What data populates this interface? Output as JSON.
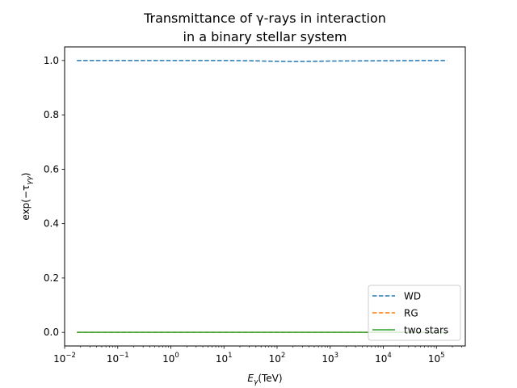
{
  "chart_data": {
    "type": "line",
    "title_line1": "Transmittance of γ-rays in interaction",
    "title_line2": "in a binary stellar system",
    "xlabel_main": "E",
    "xlabel_sub": "γ",
    "xlabel_unit": "(TeV)",
    "ylabel_main": "exp(−τ",
    "ylabel_sub": "γγ",
    "ylabel_close": ")",
    "x_scale": "log",
    "xlim": [
      0.01,
      350000
    ],
    "ylim": [
      -0.05,
      1.05
    ],
    "x_ticks": [
      {
        "value": 0.01,
        "base": "10",
        "exp": "−2"
      },
      {
        "value": 0.1,
        "base": "10",
        "exp": "−1"
      },
      {
        "value": 1,
        "base": "10",
        "exp": "0"
      },
      {
        "value": 10,
        "base": "10",
        "exp": "1"
      },
      {
        "value": 100,
        "base": "10",
        "exp": "2"
      },
      {
        "value": 1000,
        "base": "10",
        "exp": "3"
      },
      {
        "value": 10000,
        "base": "10",
        "exp": "4"
      },
      {
        "value": 100000,
        "base": "10",
        "exp": "5"
      }
    ],
    "y_ticks": [
      0.0,
      0.2,
      0.4,
      0.6,
      0.8,
      1.0
    ],
    "y_tick_labels": [
      "0.0",
      "0.2",
      "0.4",
      "0.6",
      "0.8",
      "1.0"
    ],
    "grid": false,
    "legend_placement": "lower-right",
    "series": [
      {
        "name": "WD",
        "color": "#1f77b4",
        "dash": "dashed",
        "x": [
          0.017,
          0.1,
          1,
          10,
          30,
          100,
          200,
          500,
          1000,
          10000,
          100000,
          160000
        ],
        "y": [
          1.0,
          1.0,
          1.0,
          1.0,
          0.999,
          0.997,
          0.996,
          0.997,
          0.998,
          0.999,
          1.0,
          1.0
        ]
      },
      {
        "name": "RG",
        "color": "#ff7f0e",
        "dash": "dashed",
        "x": [
          0.017,
          1,
          100,
          10000,
          160000
        ],
        "y": [
          0.0,
          0.0,
          0.0,
          0.0,
          0.0
        ]
      },
      {
        "name": "two stars",
        "color": "#2ca02c",
        "dash": "solid",
        "x": [
          0.017,
          1,
          100,
          10000,
          160000
        ],
        "y": [
          0.0,
          0.0,
          0.0,
          0.0,
          0.0
        ]
      }
    ]
  }
}
